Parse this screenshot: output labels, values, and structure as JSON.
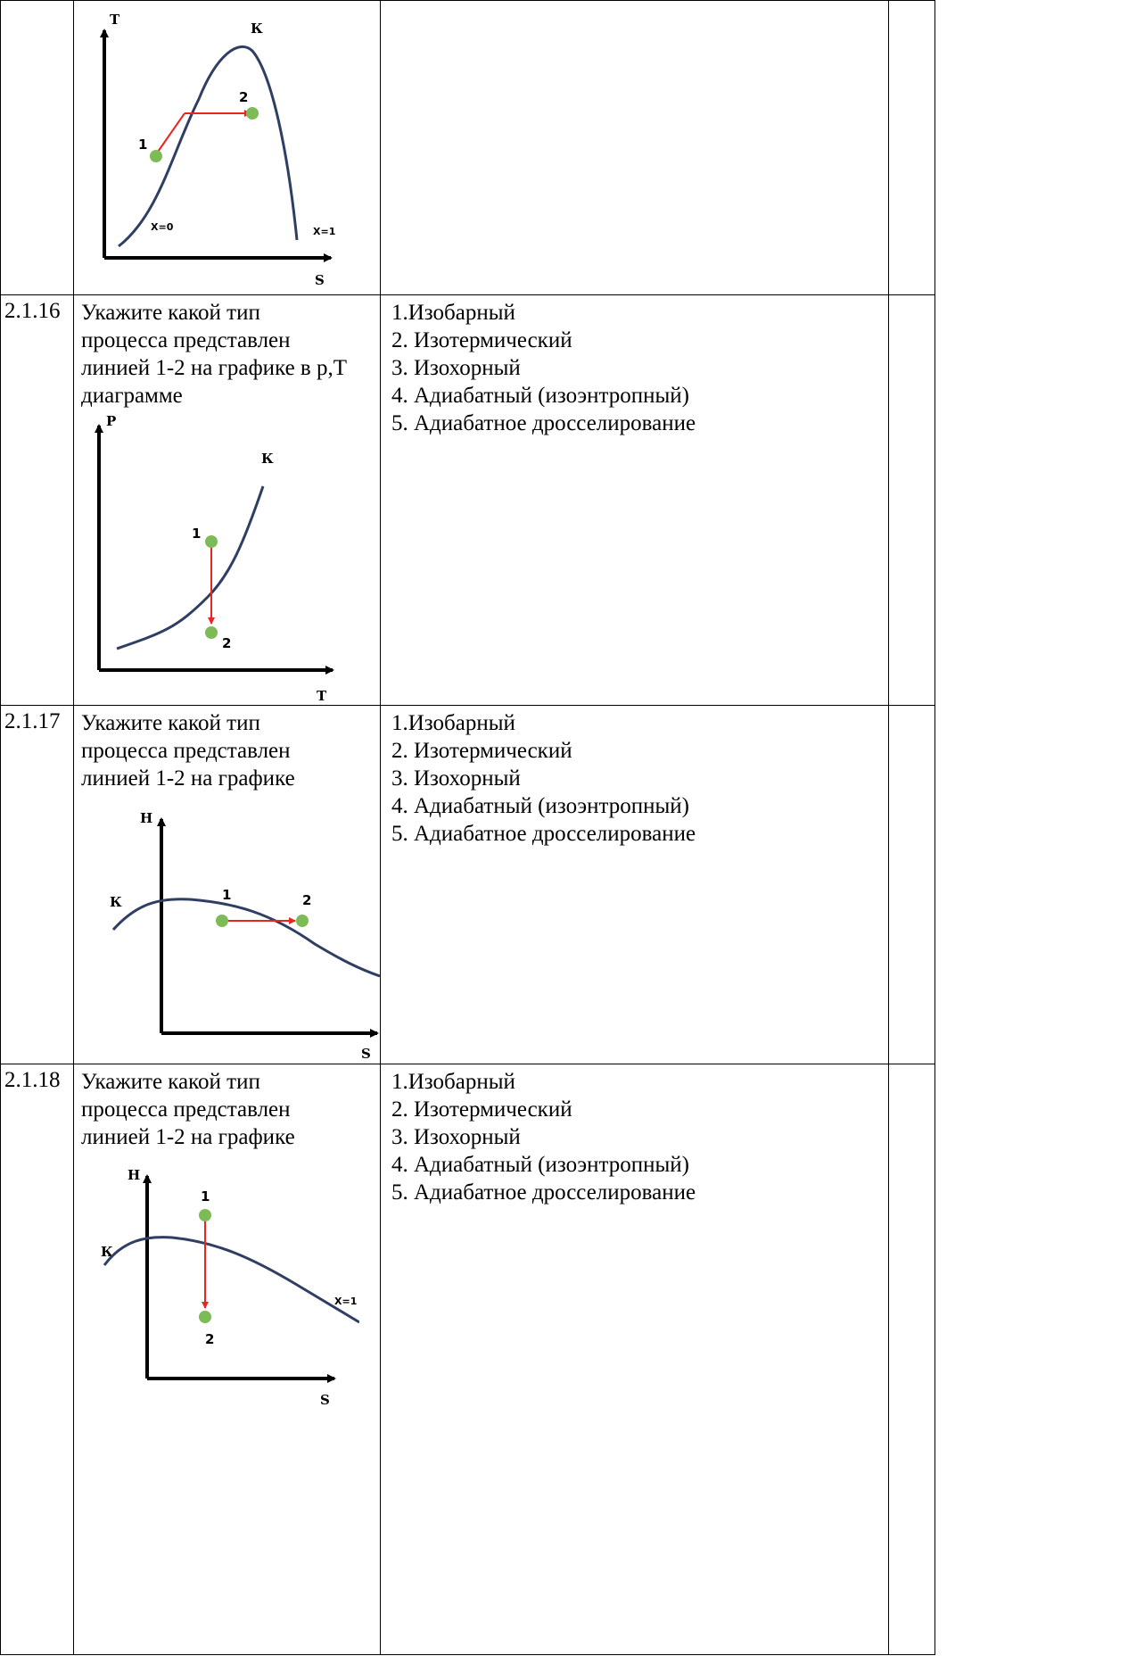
{
  "rows": [
    {
      "number": "",
      "question": "",
      "graph": {
        "y_label": "T",
        "x_label": "S",
        "curve_label": "К",
        "point1": "1",
        "point2": "2",
        "left_label": "X=0",
        "right_label": "X=1"
      },
      "answers": []
    },
    {
      "number": "2.1.16",
      "question": "Укажите какой тип процесса представлен линией 1-2 на графике в р,Т диаграмме",
      "graph": {
        "y_label": "P",
        "x_label": "T",
        "curve_label": "К",
        "point1": "1",
        "point2": "2"
      },
      "answers": [
        "1.Изобарный",
        "2. Изотермический",
        "3. Изохорный",
        "4. Адиабатный (изоэнтропный)",
        "5. Адиабатное дросселирование"
      ]
    },
    {
      "number": "2.1.17",
      "question": "Укажите какой тип процесса представлен линией 1-2 на графике",
      "graph": {
        "y_label": "H",
        "x_label": "S",
        "curve_label": "К",
        "point1": "1",
        "point2": "2"
      },
      "answers": [
        "1.Изобарный",
        "2. Изотермический",
        "3. Изохорный",
        "4. Адиабатный (изоэнтропный)",
        "5. Адиабатное дросселирование"
      ]
    },
    {
      "number": "2.1.18",
      "question": "Укажите какой тип процесса представлен линией 1-2 на графике",
      "graph": {
        "y_label": "H",
        "x_label": "S",
        "curve_label": "К",
        "point1": "1",
        "point2": "2",
        "right_label": "X=1"
      },
      "answers": [
        "1.Изобарный",
        "2. Изотермический",
        "3. Изохорный",
        "4. Адиабатный (изоэнтропный)",
        "5. Адиабатное дросселирование"
      ]
    }
  ],
  "colors": {
    "curve": "#2f3f63",
    "arrow": "#e8251f",
    "point": "#7dbb57"
  }
}
